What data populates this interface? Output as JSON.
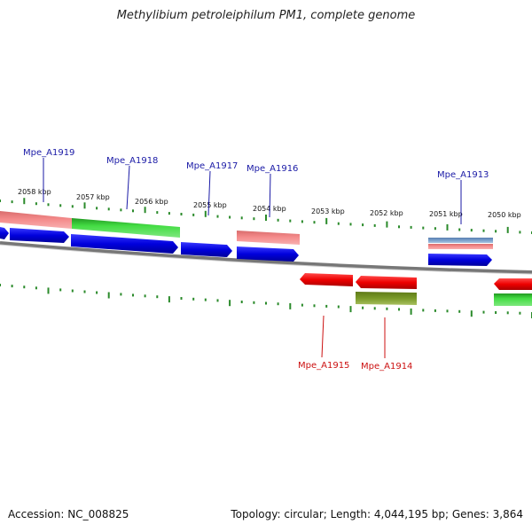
{
  "title": "Methylibium petroleiphilum PM1, complete genome",
  "footer": {
    "accession": "Accession: NC_008825",
    "summary": "Topology: circular; Length: 4,044,195 bp; Genes: 3,864"
  },
  "scale_labels": [
    "2058 kbp",
    "2057 kbp",
    "2056 kbp",
    "2055 kbp",
    "2054 kbp",
    "2053 kbp",
    "2052 kbp",
    "2051 kbp",
    "2050 kbp"
  ],
  "gene_labels_top": [
    "Mpe_A1919",
    "Mpe_A1918",
    "Mpe_A1917",
    "Mpe_A1916",
    "Mpe_A1913"
  ],
  "gene_labels_bottom": [
    "Mpe_A1915",
    "Mpe_A1914"
  ],
  "colors": {
    "cds_forward": "#0000e0",
    "cds_reverse": "#ee0000",
    "gene_pink": "#f08080",
    "gene_green": "#33cc33",
    "gene_olive": "#6f8f1f",
    "gene_steel": "#6a8fb8",
    "tick": "#2a8a2a",
    "backbone": "#888888",
    "label_top": "#1a1aa6",
    "label_bottom": "#cc1111"
  }
}
